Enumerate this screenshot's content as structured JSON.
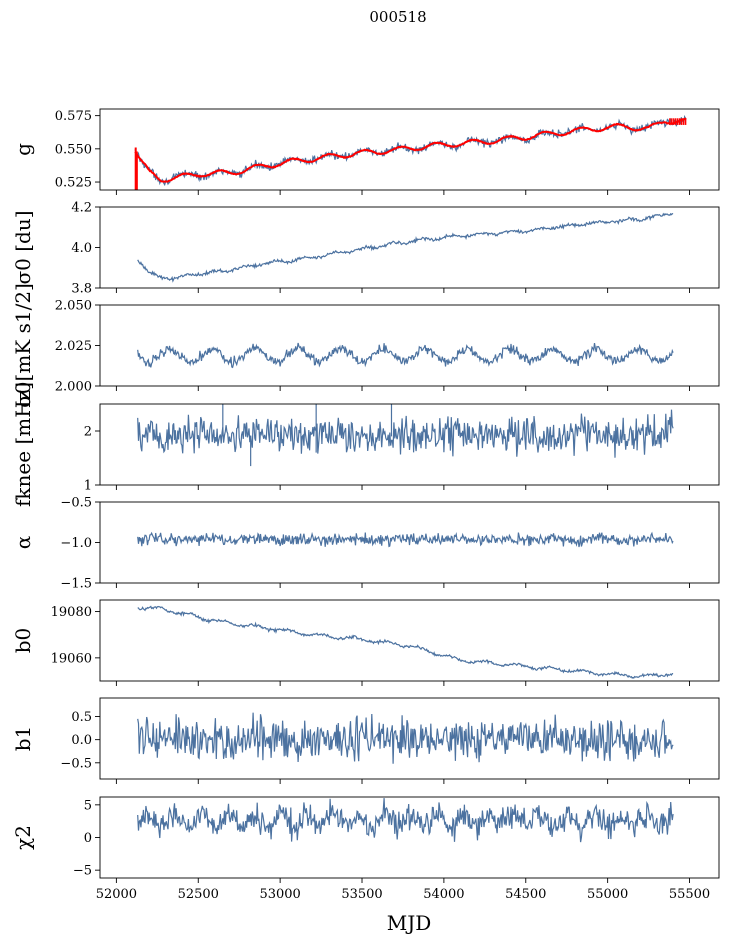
{
  "figure": {
    "suptitle": "000518",
    "xlabel": "MJD",
    "xlim": [
      51900,
      55680
    ],
    "xticks": [
      52000,
      52500,
      53000,
      53500,
      54000,
      54500,
      55000,
      55500
    ],
    "xtick_labels": [
      "52000",
      "52500",
      "53000",
      "53500",
      "54000",
      "54500",
      "55000",
      "55500"
    ],
    "line_color": "#4c72a0",
    "fit_color": "#ff0000"
  },
  "chart_data": [
    {
      "type": "line",
      "key": "g",
      "ylabel": "g",
      "ylim": [
        0.519,
        0.58
      ],
      "yticks": [
        0.525,
        0.55,
        0.575
      ],
      "ytick_labels": [
        "0.525",
        "0.550",
        "0.575"
      ],
      "x_range": [
        52115,
        55480
      ],
      "base": {
        "x": [
          52115,
          52140,
          52200,
          52270,
          52350,
          52500,
          52700,
          52900,
          53100,
          53300,
          53500,
          53700,
          53900,
          54100,
          54300,
          54500,
          54700,
          54900,
          55100,
          55250,
          55350,
          55480
        ],
        "y": [
          0.549,
          0.543,
          0.532,
          0.527,
          0.528,
          0.531,
          0.532,
          0.537,
          0.541,
          0.544,
          0.547,
          0.549,
          0.552,
          0.554,
          0.556,
          0.559,
          0.562,
          0.565,
          0.567,
          0.565,
          0.571,
          0.571
        ]
      },
      "noise": 0.0015,
      "wobble": {
        "amp": 0.002,
        "period": 220
      },
      "overlay": {
        "name": "fit",
        "color": "#ff0000",
        "noise": 0.0006
      },
      "spikes": [
        {
          "x": 52118,
          "low": 0.519,
          "high": 0.551
        },
        {
          "x": 52125,
          "low": 0.519,
          "high": 0.548
        }
      ]
    },
    {
      "type": "line",
      "key": "sigma0_du",
      "ylabel": "σ0 [du]",
      "ylim": [
        3.8,
        4.2
      ],
      "yticks": [
        3.8,
        4.0,
        4.2
      ],
      "ytick_labels": [
        "3.8",
        "4.0",
        "4.2"
      ],
      "x_range": [
        52130,
        55400
      ],
      "base": {
        "x": [
          52130,
          52200,
          52260,
          52350,
          52500,
          52700,
          52900,
          53100,
          53400,
          53700,
          54000,
          54300,
          54600,
          54900,
          55200,
          55400
        ],
        "y": [
          3.94,
          3.88,
          3.85,
          3.85,
          3.87,
          3.89,
          3.92,
          3.94,
          3.98,
          4.02,
          4.05,
          4.07,
          4.09,
          4.12,
          4.14,
          4.17
        ]
      },
      "noise": 0.004,
      "wobble": {
        "amp": 0.006,
        "period": 180
      }
    },
    {
      "type": "line",
      "key": "sigma0_mk",
      "ylabel": "σ0[mK s1/2]",
      "ylim": [
        2.0,
        2.05
      ],
      "yticks": [
        2.0,
        2.025,
        2.05
      ],
      "ytick_labels": [
        "2.000",
        "2.025",
        "2.050"
      ],
      "x_range": [
        52130,
        55400
      ],
      "base": {
        "x": [
          52130,
          55400
        ],
        "y": [
          2.019,
          2.019
        ]
      },
      "noise": 0.0015,
      "wobble": {
        "amp": 0.004,
        "period": 260
      }
    },
    {
      "type": "line",
      "key": "fknee",
      "ylabel": "fknee [mHz]",
      "ylim": [
        1.0,
        2.5
      ],
      "yticks": [
        1,
        2
      ],
      "ytick_labels": [
        "1",
        "2"
      ],
      "x_range": [
        52130,
        55400
      ],
      "base": {
        "x": [
          52130,
          55400
        ],
        "y": [
          1.93,
          1.93
        ]
      },
      "noise": 0.17,
      "wobble": {
        "amp": 0.03,
        "period": 400
      },
      "spikes": [
        {
          "x": 52820,
          "low": 1.35,
          "high": 1.9
        },
        {
          "x": 53220,
          "low": 1.6,
          "high": 2.5
        },
        {
          "x": 52650,
          "low": 1.9,
          "high": 2.5
        },
        {
          "x": 53680,
          "low": 1.9,
          "high": 2.5
        }
      ]
    },
    {
      "type": "line",
      "key": "alpha",
      "ylabel": "α",
      "ylim": [
        -1.5,
        -0.5
      ],
      "yticks": [
        -1.5,
        -1.0,
        -0.5
      ],
      "ytick_labels": [
        "−1.5",
        "−1.0",
        "−0.5"
      ],
      "x_range": [
        52130,
        55400
      ],
      "base": {
        "x": [
          52130,
          55400
        ],
        "y": [
          -0.96,
          -0.96
        ]
      },
      "noise": 0.035,
      "wobble": {
        "amp": 0.01,
        "period": 300
      }
    },
    {
      "type": "line",
      "key": "b0",
      "ylabel": "b0",
      "ylim": [
        19050,
        19085
      ],
      "yticks": [
        19060,
        19080
      ],
      "ytick_labels": [
        "19060",
        "19080"
      ],
      "x_range": [
        52130,
        55400
      ],
      "base": {
        "x": [
          52130,
          52300,
          52600,
          52900,
          53200,
          53500,
          53800,
          54100,
          54400,
          54700,
          55000,
          55200,
          55400
        ],
        "y": [
          19082,
          19081,
          19076,
          19073,
          19070,
          19068,
          19065,
          19059,
          19057,
          19055,
          19053,
          19052,
          19053
        ]
      },
      "noise": 0.3,
      "wobble": {
        "amp": 0.6,
        "period": 200
      }
    },
    {
      "type": "line",
      "key": "b1",
      "ylabel": "b1",
      "ylim": [
        -0.85,
        0.9
      ],
      "yticks": [
        -0.5,
        0.0,
        0.5
      ],
      "ytick_labels": [
        "−0.5",
        "0.0",
        "0.5"
      ],
      "x_range": [
        52130,
        55400
      ],
      "base": {
        "x": [
          52130,
          55400
        ],
        "y": [
          0.0,
          0.0
        ]
      },
      "noise": 0.22,
      "wobble": {
        "amp": 0.04,
        "period": 350
      }
    },
    {
      "type": "line",
      "key": "chi2",
      "ylabel": "χ2",
      "ylim": [
        -6.2,
        6.2
      ],
      "yticks": [
        -5,
        0,
        5
      ],
      "ytick_labels": [
        "−5",
        "0",
        "5"
      ],
      "x_range": [
        52130,
        55400
      ],
      "base": {
        "x": [
          52130,
          55400
        ],
        "y": [
          2.6,
          2.6
        ]
      },
      "noise": 1.0,
      "wobble": {
        "amp": 0.8,
        "period": 160
      }
    }
  ]
}
